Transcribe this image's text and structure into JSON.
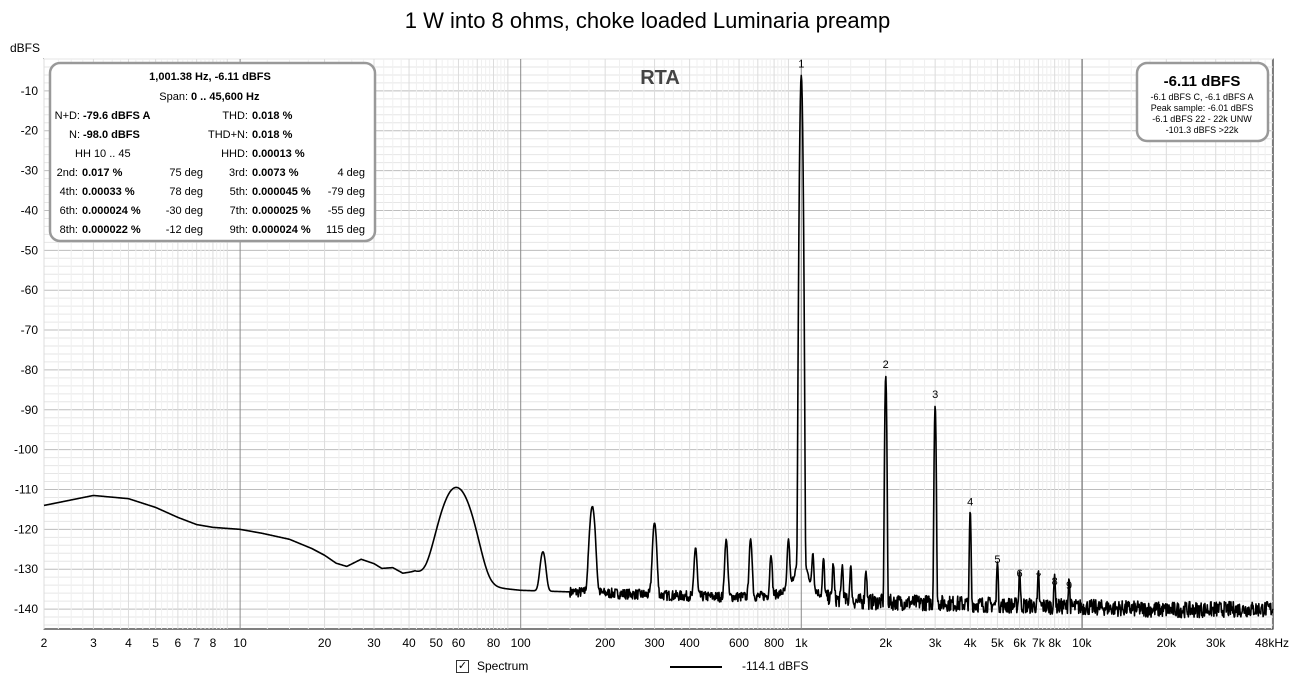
{
  "chart_data": {
    "type": "line",
    "title": "1 W into 8 ohms, choke loaded Luminaria preamp",
    "ylabel": "dBFS",
    "xlabel": "",
    "x_scale": "log",
    "xlim": [
      2,
      48000
    ],
    "ylim": [
      -145,
      -2
    ],
    "y_ticks": [
      -10,
      -20,
      -30,
      -40,
      -50,
      -60,
      -70,
      -80,
      -90,
      -100,
      -110,
      -120,
      -130,
      -140
    ],
    "x_ticks": [
      {
        "v": 2,
        "label": "2"
      },
      {
        "v": 3,
        "label": "3"
      },
      {
        "v": 4,
        "label": "4"
      },
      {
        "v": 5,
        "label": "5"
      },
      {
        "v": 6,
        "label": "6"
      },
      {
        "v": 7,
        "label": "7"
      },
      {
        "v": 8,
        "label": "8"
      },
      {
        "v": 10,
        "label": "10"
      },
      {
        "v": 20,
        "label": "20"
      },
      {
        "v": 30,
        "label": "30"
      },
      {
        "v": 40,
        "label": "40"
      },
      {
        "v": 50,
        "label": "50"
      },
      {
        "v": 60,
        "label": "60"
      },
      {
        "v": 80,
        "label": "80"
      },
      {
        "v": 100,
        "label": "100"
      },
      {
        "v": 200,
        "label": "200"
      },
      {
        "v": 300,
        "label": "300"
      },
      {
        "v": 400,
        "label": "400"
      },
      {
        "v": 600,
        "label": "600"
      },
      {
        "v": 800,
        "label": "800"
      },
      {
        "v": 1000,
        "label": "1k"
      },
      {
        "v": 2000,
        "label": "2k"
      },
      {
        "v": 3000,
        "label": "3k"
      },
      {
        "v": 4000,
        "label": "4k"
      },
      {
        "v": 5000,
        "label": "5k"
      },
      {
        "v": 6000,
        "label": "6k"
      },
      {
        "v": 7000,
        "label": "7k"
      },
      {
        "v": 8000,
        "label": "8k"
      },
      {
        "v": 10000,
        "label": "10k"
      },
      {
        "v": 20000,
        "label": "20k"
      },
      {
        "v": 30000,
        "label": "30k"
      },
      {
        "v": 48000,
        "label": "48kHz"
      }
    ],
    "grid": true,
    "rta_label": "RTA",
    "series": [
      {
        "name": "Spectrum",
        "color": "#000000",
        "baseline": [
          [
            2,
            -114
          ],
          [
            3,
            -111.5
          ],
          [
            4,
            -112.3
          ],
          [
            5,
            -114.5
          ],
          [
            6,
            -117
          ],
          [
            7,
            -118.8
          ],
          [
            8,
            -119.5
          ],
          [
            10,
            -120
          ],
          [
            12,
            -121
          ],
          [
            15,
            -122.5
          ],
          [
            18,
            -124.8
          ],
          [
            20,
            -126.5
          ],
          [
            22,
            -128.5
          ],
          [
            24,
            -129.3
          ],
          [
            27,
            -127.5
          ],
          [
            30,
            -128.6
          ],
          [
            32,
            -129.8
          ],
          [
            35,
            -129.6
          ],
          [
            38,
            -131
          ],
          [
            42,
            -130.6
          ],
          [
            46,
            -132.2
          ],
          [
            50,
            -133.3
          ],
          [
            54,
            -133.6
          ],
          [
            56,
            -133.2
          ],
          [
            60,
            -134.5
          ],
          [
            70,
            -134.5
          ],
          [
            80,
            -134.6
          ],
          [
            100,
            -135.3
          ],
          [
            150,
            -135.7
          ],
          [
            200,
            -136
          ],
          [
            300,
            -136.5
          ],
          [
            500,
            -137
          ],
          [
            800,
            -137.2
          ],
          [
            1500,
            -138.3
          ],
          [
            3000,
            -138.5
          ],
          [
            5000,
            -139
          ],
          [
            10000,
            -139.5
          ],
          [
            20000,
            -140.2
          ],
          [
            48000,
            -140
          ]
        ],
        "peaks": [
          {
            "f": 59,
            "level": -110,
            "width": 0.06
          },
          {
            "f": 120,
            "level": -129,
            "width": 0.012
          },
          {
            "f": 180,
            "level": -115,
            "width": 0.011
          },
          {
            "f": 300,
            "level": -119.5,
            "width": 0.008
          },
          {
            "f": 420,
            "level": -127,
            "width": 0.006
          },
          {
            "f": 540,
            "level": -124.5,
            "width": 0.006
          },
          {
            "f": 660,
            "level": -124.5,
            "width": 0.006
          },
          {
            "f": 780,
            "level": -129.5,
            "width": 0.005
          },
          {
            "f": 900,
            "level": -125,
            "width": 0.005
          },
          {
            "f": 1000,
            "level": -6.11,
            "width": 0.004
          },
          {
            "f": 1100,
            "level": -130,
            "width": 0.004
          },
          {
            "f": 1200,
            "level": -131,
            "width": 0.004
          },
          {
            "f": 1300,
            "level": -132.5,
            "width": 0.004
          },
          {
            "f": 1400,
            "level": -133,
            "width": 0.004
          },
          {
            "f": 1500,
            "level": -133.5,
            "width": 0.004
          },
          {
            "f": 1700,
            "level": -134.5,
            "width": 0.004
          },
          {
            "f": 2000,
            "level": -81.5,
            "width": 0.003
          },
          {
            "f": 3000,
            "level": -89,
            "width": 0.003
          },
          {
            "f": 4000,
            "level": -116,
            "width": 0.003
          },
          {
            "f": 5000,
            "level": -130.5,
            "width": 0.003
          },
          {
            "f": 6000,
            "level": -134,
            "width": 0.003
          },
          {
            "f": 7000,
            "level": -135,
            "width": 0.003
          },
          {
            "f": 8000,
            "level": -136,
            "width": 0.003
          },
          {
            "f": 9000,
            "level": -137,
            "width": 0.003
          }
        ]
      }
    ],
    "harmonic_markers": [
      {
        "label": "1",
        "f": 1000,
        "level": -6.11
      },
      {
        "label": "2",
        "f": 2000,
        "level": -81.5
      },
      {
        "label": "3",
        "f": 3000,
        "level": -89
      },
      {
        "label": "4",
        "f": 4000,
        "level": -116
      },
      {
        "label": "5",
        "f": 5000,
        "level": -130.5
      },
      {
        "label": "6",
        "f": 6000,
        "level": -134
      },
      {
        "label": "7",
        "f": 7000,
        "level": -135
      },
      {
        "label": "8",
        "f": 8000,
        "level": -136
      },
      {
        "label": "9",
        "f": 9000,
        "level": -137
      }
    ]
  },
  "info_box": {
    "line1": "1,001.38 Hz, -6.11 dBFS",
    "span_label": "Span:",
    "span_value": "0 .. 45,600 Hz",
    "nd_label": "N+D:",
    "nd_value": "-79.6 dBFS A",
    "thd_label": "THD:",
    "thd_value": "0.018 %",
    "n_label": "N:",
    "n_value": "-98.0 dBFS",
    "thdn_label": "THD+N:",
    "thdn_value": "0.018 %",
    "hh_label": "HH 10 .. 45",
    "hhd_label": "HHD:",
    "hhd_value": "0.00013 %",
    "harmonics": [
      {
        "label": "2nd:",
        "value": "0.017 %",
        "phase": "75 deg"
      },
      {
        "label": "3rd:",
        "value": "0.0073 %",
        "phase": "4 deg"
      },
      {
        "label": "4th:",
        "value": "0.00033 %",
        "phase": "78 deg"
      },
      {
        "label": "5th:",
        "value": "0.000045 %",
        "phase": "-79 deg"
      },
      {
        "label": "6th:",
        "value": "0.000024 %",
        "phase": "-30 deg"
      },
      {
        "label": "7th:",
        "value": "0.000025 %",
        "phase": "-55 deg"
      },
      {
        "label": "8th:",
        "value": "0.000022 %",
        "phase": "-12 deg"
      },
      {
        "label": "9th:",
        "value": "0.000024 %",
        "phase": "115 deg"
      }
    ]
  },
  "level_box": {
    "main": "-6.11 dBFS",
    "lines": [
      "-6.1 dBFS C, -6.1 dBFS A",
      "Peak sample: -6.01 dBFS",
      "-6.1 dBFS 22 - 22k UNW",
      "-101.3 dBFS >22k"
    ]
  },
  "legend": {
    "checkbox_mark": "✓",
    "spectrum_label": "Spectrum",
    "line_value": "-114.1 dBFS"
  }
}
